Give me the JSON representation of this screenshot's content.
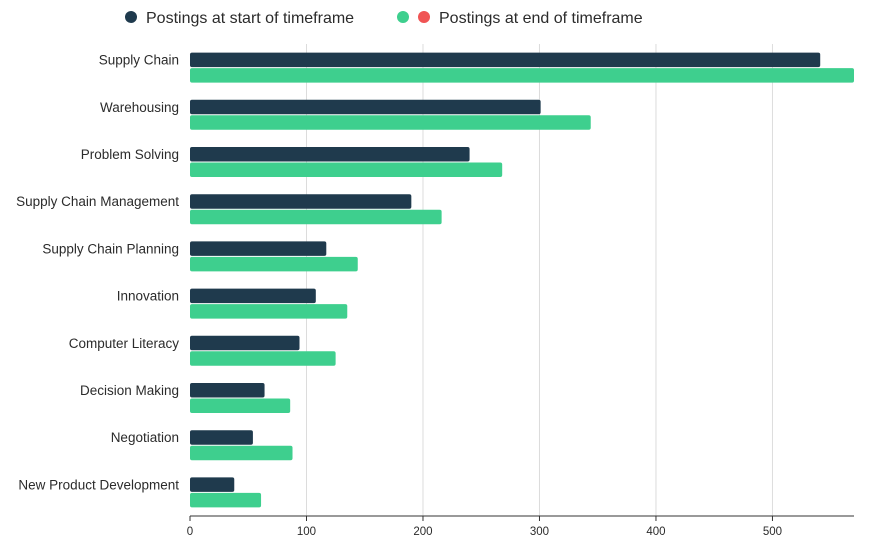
{
  "chart_data": {
    "type": "bar",
    "orientation": "horizontal",
    "categories": [
      "Supply Chain",
      "Warehousing",
      "Problem Solving",
      "Supply Chain Management",
      "Supply Chain Planning",
      "Innovation",
      "Computer Literacy",
      "Decision Making",
      "Negotiation",
      "New Product Development"
    ],
    "series": [
      {
        "name": "Postings at start of timeframe",
        "color": "#1f3a4d",
        "values": [
          541,
          301,
          240,
          190,
          117,
          108,
          94,
          64,
          54,
          38
        ]
      },
      {
        "name": "Postings at end of timeframe",
        "color": "#3ecf8e",
        "values": [
          570,
          344,
          268,
          216,
          144,
          135,
          125,
          86,
          88,
          61
        ]
      }
    ],
    "legend_extra_marker_color": "#f05454",
    "xticks": [
      0,
      100,
      200,
      300,
      400,
      500
    ],
    "xlim": [
      0,
      570
    ],
    "grid": true,
    "legend_position": "top"
  }
}
